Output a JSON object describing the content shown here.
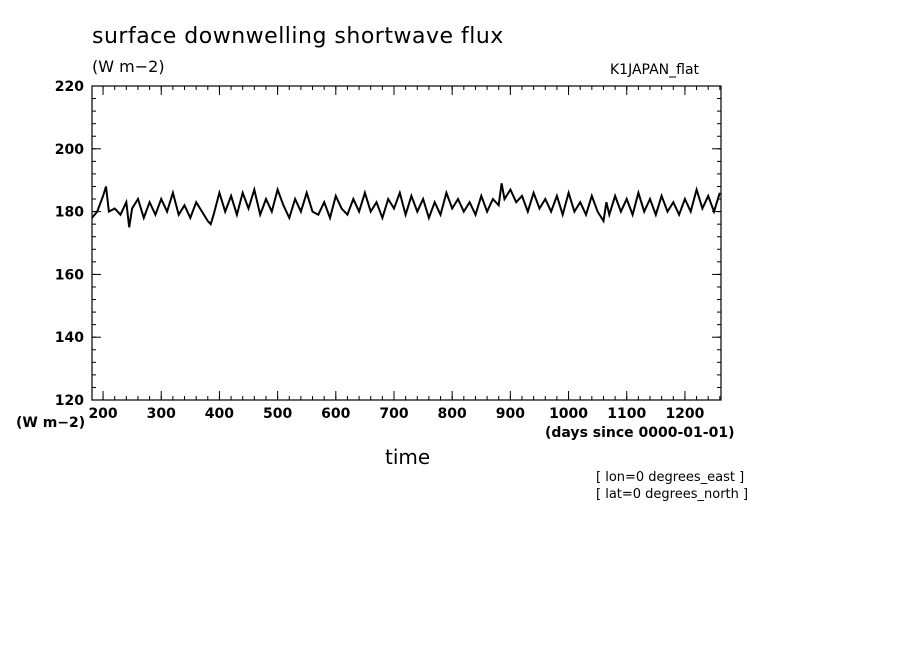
{
  "title": "surface downwelling shortwave flux",
  "units_top": "(W m−2)",
  "dataset": "K1JAPAN_flat",
  "units_left": "(W m−2)",
  "x_units": "(days since 0000-01-01)",
  "x_title": "time",
  "notes": {
    "lon": "[ lon=0 degrees_east ]",
    "lat": "[ lat=0 degrees_north ]"
  },
  "chart_data": {
    "type": "line",
    "title": "surface downwelling shortwave flux",
    "xlabel": "time",
    "ylabel": "(W m−2)",
    "xlim": [
      181,
      1262
    ],
    "ylim": [
      120,
      220
    ],
    "xticks": [
      200,
      300,
      400,
      500,
      600,
      700,
      800,
      900,
      1000,
      1100,
      1200
    ],
    "yticks": [
      120,
      140,
      160,
      180,
      200,
      220
    ],
    "grid": false,
    "color": "#000000",
    "series": [
      {
        "x": [
          181,
          190,
          200,
          205,
          210,
          220,
          230,
          240,
          245,
          250,
          260,
          270,
          280,
          290,
          300,
          310,
          320,
          330,
          340,
          350,
          360,
          370,
          380,
          385,
          390,
          400,
          410,
          420,
          430,
          440,
          450,
          460,
          470,
          480,
          490,
          500,
          510,
          520,
          530,
          540,
          550,
          560,
          570,
          580,
          590,
          600,
          610,
          620,
          630,
          640,
          650,
          660,
          670,
          680,
          690,
          700,
          710,
          720,
          730,
          740,
          750,
          760,
          770,
          780,
          790,
          800,
          810,
          820,
          830,
          840,
          850,
          860,
          870,
          880,
          885,
          890,
          900,
          910,
          920,
          930,
          940,
          950,
          960,
          970,
          980,
          990,
          1000,
          1010,
          1020,
          1030,
          1040,
          1050,
          1060,
          1065,
          1070,
          1080,
          1090,
          1100,
          1110,
          1120,
          1130,
          1140,
          1150,
          1160,
          1170,
          1180,
          1190,
          1200,
          1210,
          1220,
          1230,
          1240,
          1250,
          1260
        ],
        "values": [
          178,
          180,
          185,
          188,
          180,
          181,
          179,
          183,
          175,
          181,
          184,
          178,
          183,
          179,
          184,
          180,
          186,
          179,
          182,
          178,
          183,
          180,
          177,
          176,
          179,
          186,
          180,
          185,
          179,
          186,
          181,
          187,
          179,
          184,
          180,
          187,
          182,
          178,
          184,
          180,
          186,
          180,
          179,
          183,
          178,
          185,
          181,
          179,
          184,
          180,
          186,
          180,
          183,
          178,
          184,
          181,
          186,
          179,
          185,
          180,
          184,
          178,
          183,
          179,
          186,
          181,
          184,
          180,
          183,
          179,
          185,
          180,
          184,
          182,
          189,
          184,
          187,
          183,
          185,
          180,
          186,
          181,
          184,
          180,
          185,
          179,
          186,
          180,
          183,
          179,
          185,
          180,
          177,
          183,
          179,
          185,
          180,
          184,
          179,
          186,
          180,
          184,
          179,
          185,
          180,
          183,
          179,
          184,
          180,
          187,
          181,
          185,
          180,
          186
        ]
      }
    ]
  }
}
